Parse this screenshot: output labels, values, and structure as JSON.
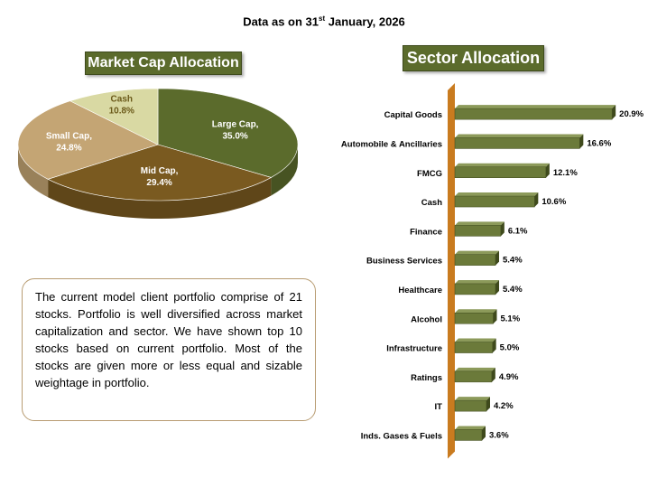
{
  "header": {
    "date_prefix": "Data as on 31",
    "date_sup": "st",
    "date_suffix": " January, 2026"
  },
  "note": {
    "text": "The current model client portfolio comprise of 21 stocks. Portfolio is well diversified across market capitalization and sector. We have shown top 10 stocks based on current portfolio. Most of the stocks are given more or less equal  and sizable weightage  in portfolio."
  },
  "colors": {
    "large_cap": "#5b6b2c",
    "mid_cap": "#7a5a20",
    "small_cap": "#c4a574",
    "cash": "#d9d9a3",
    "bar": "#6b7a3a",
    "axis": "#c97b1f"
  },
  "chart_data": [
    {
      "type": "pie",
      "title": "Market Cap Allocation",
      "slices": [
        {
          "name": "Large Cap,",
          "value": 35.0,
          "label": "35.0%"
        },
        {
          "name": "Mid Cap,",
          "value": 29.4,
          "label": "29.4%"
        },
        {
          "name": "Small Cap,",
          "value": 24.8,
          "label": "24.8%"
        },
        {
          "name": "Cash",
          "value": 10.8,
          "label": "10.8%"
        }
      ]
    },
    {
      "type": "bar",
      "orientation": "horizontal",
      "title": "Sector Allocation",
      "categories": [
        "Capital Goods",
        "Automobile & Ancillaries",
        "FMCG",
        "Cash",
        "Finance",
        "Business Services",
        "Healthcare",
        "Alcohol",
        "Infrastructure",
        "Ratings",
        "IT",
        "Inds. Gases & Fuels"
      ],
      "values": [
        20.9,
        16.6,
        12.1,
        10.6,
        6.1,
        5.4,
        5.4,
        5.1,
        5.0,
        4.9,
        4.2,
        3.6
      ],
      "value_labels": [
        "20.9%",
        "16.6%",
        "12.1%",
        "10.6%",
        "6.1%",
        "5.4%",
        "5.4%",
        "5.1%",
        "5.0%",
        "4.9%",
        "4.2%",
        "3.6%"
      ],
      "xlim": [
        0,
        21
      ]
    }
  ]
}
